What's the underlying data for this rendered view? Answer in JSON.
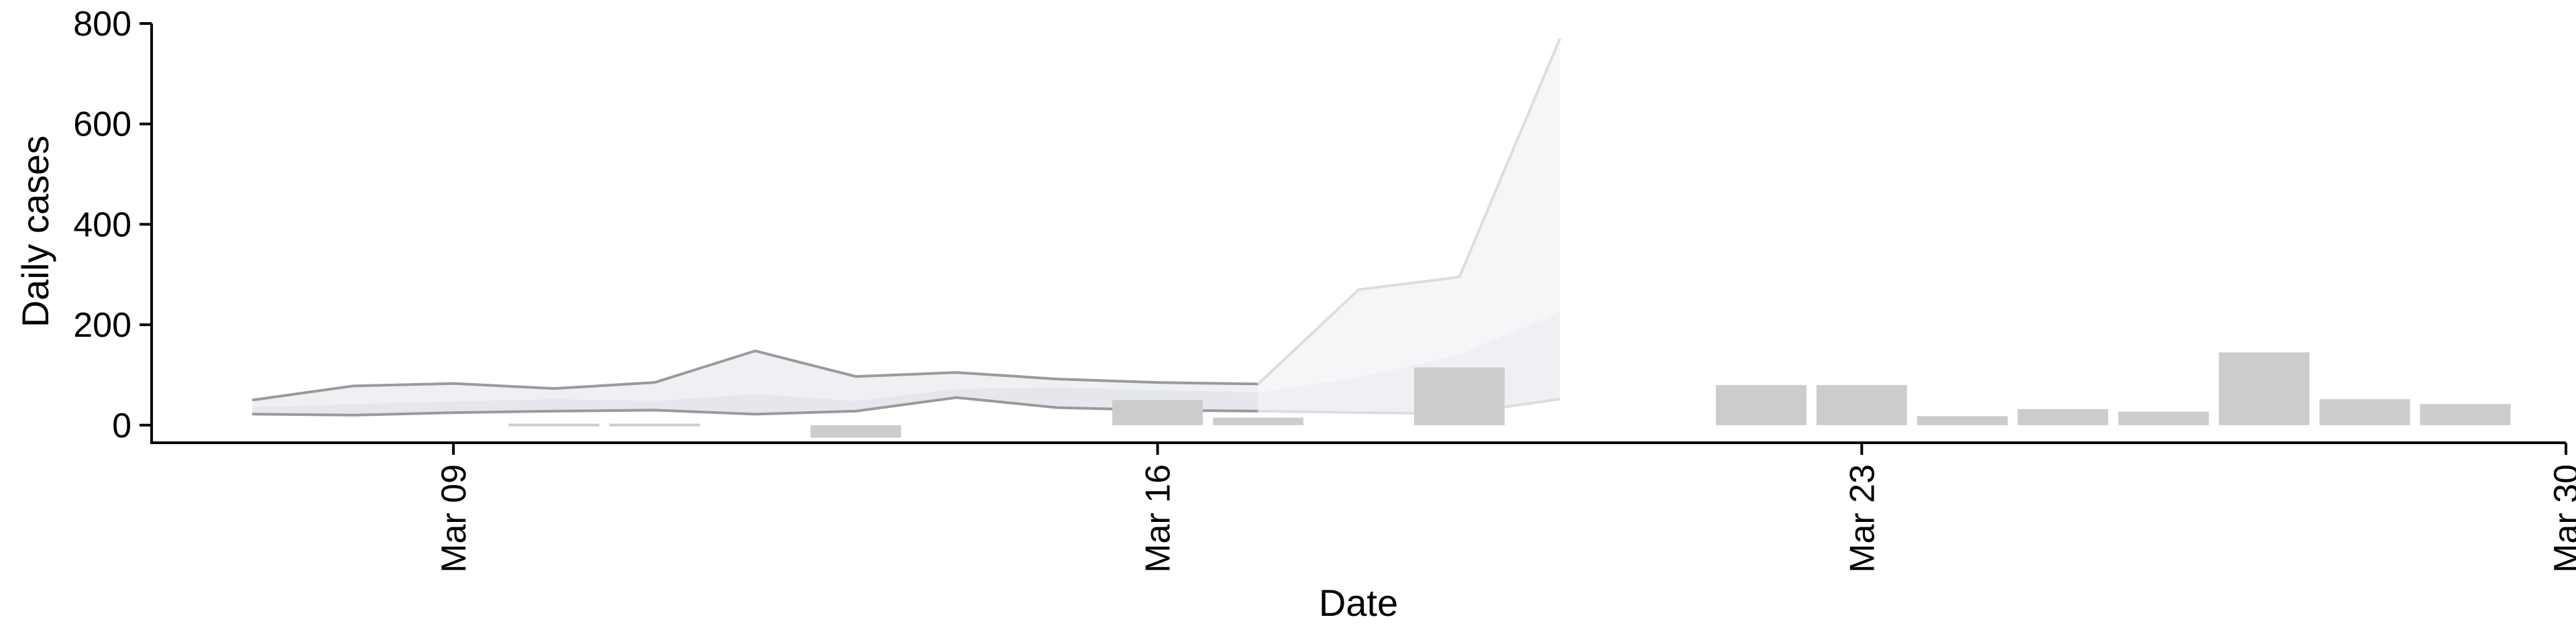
{
  "chart_data": {
    "type": "bar",
    "title": "",
    "xlabel": "Date",
    "ylabel": "Daily cases",
    "ylim": [
      -35,
      800
    ],
    "xlim": [
      "2020-03-06",
      "2020-03-30"
    ],
    "yticks": [
      0,
      200,
      400,
      600,
      800
    ],
    "xticks": [
      {
        "date": "2020-03-09",
        "label": "Mar 09"
      },
      {
        "date": "2020-03-16",
        "label": "Mar 16"
      },
      {
        "date": "2020-03-23",
        "label": "Mar 23"
      },
      {
        "date": "2020-03-30",
        "label": "Mar 30"
      }
    ],
    "grid": false,
    "bars": {
      "color": "#cccccc",
      "points": [
        {
          "date": "2020-03-10",
          "value": 3
        },
        {
          "date": "2020-03-11",
          "value": 3
        },
        {
          "date": "2020-03-13",
          "value": -25
        },
        {
          "date": "2020-03-16",
          "value": 50
        },
        {
          "date": "2020-03-17",
          "value": 15
        },
        {
          "date": "2020-03-19",
          "value": 115
        },
        {
          "date": "2020-03-22",
          "value": 80
        },
        {
          "date": "2020-03-23",
          "value": 80
        },
        {
          "date": "2020-03-24",
          "value": 18
        },
        {
          "date": "2020-03-25",
          "value": 32
        },
        {
          "date": "2020-03-26",
          "value": 27
        },
        {
          "date": "2020-03-27",
          "value": 145
        },
        {
          "date": "2020-03-28",
          "value": 52
        },
        {
          "date": "2020-03-29",
          "value": 42
        }
      ]
    },
    "bands": [
      {
        "name": "",
        "color": "#9a9a9a",
        "fill": "#dcdde6",
        "fill_opacity": 0.45,
        "dates": [
          "2020-03-07",
          "2020-03-08",
          "2020-03-09",
          "2020-03-10",
          "2020-03-11",
          "2020-03-12",
          "2020-03-13",
          "2020-03-14",
          "2020-03-15",
          "2020-03-16",
          "2020-03-17"
        ],
        "upper": [
          50,
          78,
          83,
          73,
          85,
          148,
          97,
          105,
          92,
          85,
          82
        ],
        "lower": [
          22,
          20,
          25,
          28,
          30,
          22,
          28,
          55,
          35,
          30,
          28
        ],
        "mid": [
          35,
          42,
          47,
          52,
          48,
          62,
          48,
          72,
          75,
          70,
          65
        ]
      },
      {
        "name": "",
        "color": "#dddddd",
        "fill": "#eaeaf0",
        "fill_opacity": 0.45,
        "dates": [
          "2020-03-17",
          "2020-03-18",
          "2020-03-19",
          "2020-03-20"
        ],
        "upper": [
          82,
          270,
          295,
          770
        ],
        "lower": [
          28,
          25,
          23,
          52
        ],
        "mid": [
          65,
          95,
          140,
          225
        ]
      }
    ]
  }
}
